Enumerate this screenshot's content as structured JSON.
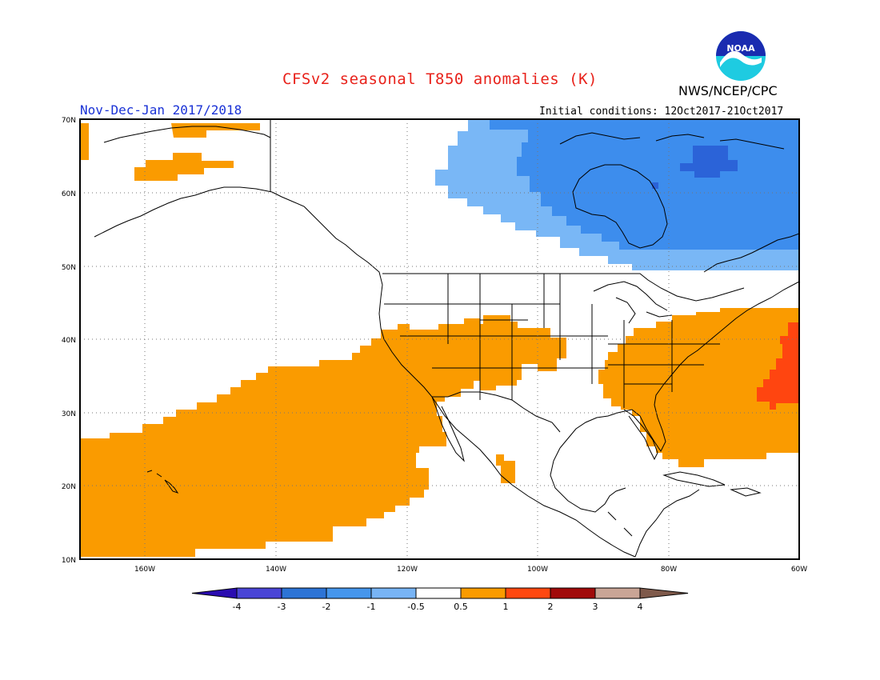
{
  "title": "CFSv2 seasonal T850 anomalies (K)",
  "agency": "NWS/NCEP/CPC",
  "period": "Nov-Dec-Jan 2017/2018",
  "initial_conditions": "Initial conditions: 12Oct2017-21Oct2017",
  "logo_text": "NOAA",
  "map": {
    "lat_labels": [
      "70N",
      "60N",
      "50N",
      "40N",
      "30N",
      "20N",
      "10N"
    ],
    "lon_labels": [
      "160W",
      "140W",
      "120W",
      "100W",
      "80W",
      "60W"
    ]
  },
  "legend": {
    "labels": [
      "-4",
      "-3",
      "-2",
      "-1",
      "-0.5",
      "0.5",
      "1",
      "2",
      "3",
      "4"
    ],
    "colors": [
      "#2a0cb0",
      "#4a45d6",
      "#2d74d6",
      "#4696ec",
      "#78b4f5",
      "#ffffff",
      "#fa9b00",
      "#ff4810",
      "#a10a0a",
      "#c9a596",
      "#7f5a4b"
    ]
  },
  "anomaly_colors": {
    "strong_cold": "#2b63d8",
    "cold": "#3d8ded",
    "weak_cold": "#79b7f6",
    "warm": "#fa9b00",
    "strong_warm": "#ff4510"
  }
}
